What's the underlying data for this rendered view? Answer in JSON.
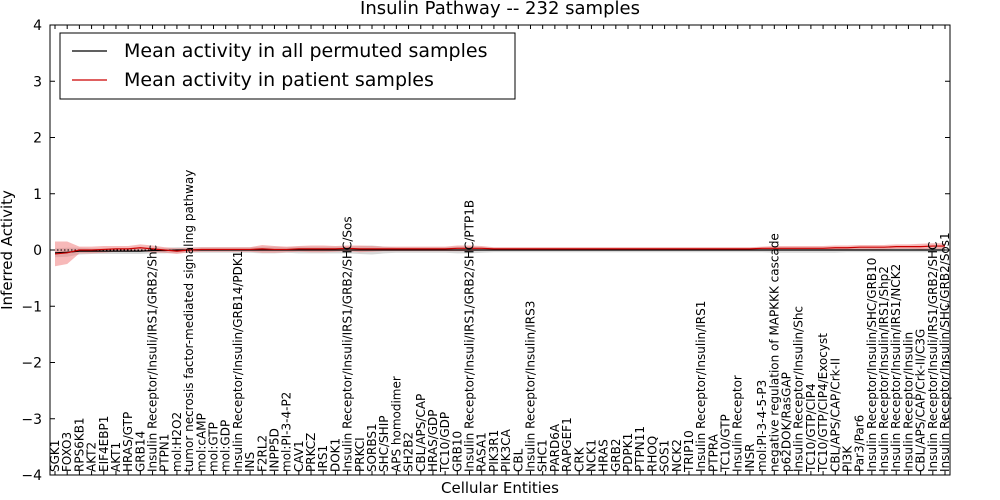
{
  "chart_data": {
    "type": "line",
    "title": "Insulin Pathway -- 232 samples",
    "xlabel": "Cellular Entities",
    "ylabel": "Inferred Activity",
    "ylim": [
      -4,
      4
    ],
    "yticks": [
      -4,
      -3,
      -2,
      -1,
      0,
      1,
      2,
      3,
      4
    ],
    "ytick_labels": [
      "−4",
      "−3",
      "−2",
      "−1",
      "0",
      "1",
      "2",
      "3",
      "4"
    ],
    "legend_position": "top-left",
    "reference_line": 0,
    "categories": [
      "SGK1",
      "FOXO3",
      "RPS6KB1",
      "AKT2",
      "EIF4EBP1",
      "AKT1",
      "HRAS/GTP",
      "GRB14",
      "Insulin Receptor/Insuli/IRS1/GRB2/Shc",
      "PTPN1",
      "mol:H2O2",
      "tumor necrosis factor-mediated signaling pathway",
      "mol:cAMP",
      "mol:GTP",
      "mol:GDP",
      "Insulin Receptor/Insulin/GRB14/PDK1",
      "INS",
      "F2RL2",
      "INPP5D",
      "mol:PI-3-4-P2",
      "CAV1",
      "PRKCZ",
      "IRS1",
      "DOK1",
      "Insulin Receptor/Insuli/IRS1/GRB2/SHC/Sos",
      "PRKCI",
      "SORBS1",
      "SHC/SHIP",
      "APS homodimer",
      "SH2B2",
      "CBL/APS/CAP",
      "HRAS/GDP",
      "TC10/GDP",
      "GRB10",
      "Insulin Receptor/Insuli/IRS1/GRB2/SHC/PTP1B",
      "RASA1",
      "PIK3R1",
      "PIK3CA",
      "CBL",
      "Insulin Receptor/Insulin/IRS3",
      "SHC1",
      "PARD6A",
      "RAPGEF1",
      "CRK",
      "NCK1",
      "HRAS",
      "GRB2",
      "PDPK1",
      "PTPN11",
      "RHOQ",
      "SOS1",
      "NCK2",
      "TRIP10",
      "Insulin Receptor/Insulin/IRS1",
      "PTPRA",
      "TC10/GTP",
      "Insulin Receptor",
      "INSR",
      "mol:PI-3-4-5-P3",
      "negative regulation of MAPKKK cascade",
      "p62DOK/RasGAP",
      "Insulin Receptor/Insulin/Shc",
      "TC10/GTP/CIP4",
      "TC10/GTP/CIP4/Exocyst",
      "CBL/APS/CAP/Crk-II",
      "PI3K",
      "Par3/Par6",
      "Insulin Receptor/Insulin/SHC/GRB10",
      "Insulin Receptor/Insulin/IRS1/Shp2",
      "Insulin Receptor/Insulin/IRS1/NCK2",
      "Insulin Receptor/Insulin",
      "CBL/APS/CAP/Crk-II/C3G",
      "Insulin Receptor/Insuli/IRS1/GRB2/SHC",
      "Insulin Receptor/Insulin/SHC/GRB2/Sos1"
    ],
    "series": [
      {
        "name": "Mean activity in all permuted samples",
        "color": "#000000",
        "band_color": "#bdbdbd",
        "values": [
          -0.05,
          -0.04,
          -0.02,
          -0.02,
          -0.02,
          -0.02,
          -0.02,
          -0.02,
          -0.01,
          -0.01,
          0.0,
          0.0,
          0.0,
          0.0,
          0.0,
          0.0,
          0.0,
          0.0,
          0.0,
          0.0,
          0.0,
          0.0,
          0.0,
          0.0,
          0.0,
          0.0,
          0.0,
          0.0,
          0.0,
          0.0,
          0.0,
          0.0,
          0.0,
          0.0,
          0.0,
          0.0,
          0.0,
          0.0,
          0.0,
          0.0,
          0.0,
          0.0,
          0.0,
          0.0,
          0.0,
          0.0,
          0.0,
          0.0,
          0.0,
          0.0,
          0.0,
          0.0,
          0.0,
          0.0,
          0.0,
          0.0,
          0.0,
          0.0,
          0.0,
          0.0,
          0.0,
          0.0,
          0.0,
          0.0,
          0.0,
          0.0,
          0.0,
          0.0,
          0.0,
          0.0,
          0.0,
          0.0,
          0.0,
          0.0
        ],
        "band": [
          0.08,
          0.08,
          0.06,
          0.05,
          0.05,
          0.05,
          0.05,
          0.05,
          0.05,
          0.05,
          0.05,
          0.05,
          0.05,
          0.05,
          0.05,
          0.05,
          0.05,
          0.06,
          0.06,
          0.05,
          0.06,
          0.06,
          0.06,
          0.06,
          0.06,
          0.07,
          0.08,
          0.06,
          0.05,
          0.05,
          0.05,
          0.05,
          0.05,
          0.06,
          0.06,
          0.05,
          0.04,
          0.04,
          0.04,
          0.04,
          0.04,
          0.04,
          0.04,
          0.04,
          0.04,
          0.04,
          0.04,
          0.04,
          0.04,
          0.04,
          0.04,
          0.04,
          0.04,
          0.04,
          0.04,
          0.04,
          0.04,
          0.04,
          0.04,
          0.05,
          0.05,
          0.05,
          0.05,
          0.05,
          0.05,
          0.04,
          0.04,
          0.04,
          0.04,
          0.04,
          0.04,
          0.04,
          0.04,
          0.04
        ]
      },
      {
        "name": "Mean activity in patient samples",
        "color": "#cc0000",
        "band_color": "#f08080",
        "values": [
          -0.07,
          -0.05,
          0.0,
          0.0,
          0.01,
          0.02,
          0.02,
          0.04,
          0.02,
          0.0,
          -0.02,
          0.0,
          0.01,
          0.01,
          0.01,
          0.01,
          0.01,
          0.02,
          0.01,
          0.01,
          0.02,
          0.02,
          0.02,
          0.02,
          0.03,
          0.02,
          0.02,
          0.02,
          0.02,
          0.02,
          0.02,
          0.02,
          0.02,
          0.03,
          0.03,
          0.03,
          0.02,
          0.02,
          0.02,
          0.02,
          0.02,
          0.02,
          0.02,
          0.02,
          0.02,
          0.02,
          0.02,
          0.02,
          0.02,
          0.02,
          0.02,
          0.02,
          0.02,
          0.02,
          0.02,
          0.02,
          0.02,
          0.02,
          0.03,
          0.03,
          0.03,
          0.03,
          0.03,
          0.03,
          0.04,
          0.04,
          0.05,
          0.05,
          0.05,
          0.06,
          0.06,
          0.06,
          0.07,
          0.07
        ],
        "band": [
          0.22,
          0.2,
          0.06,
          0.06,
          0.06,
          0.05,
          0.05,
          0.06,
          0.06,
          0.05,
          0.05,
          0.04,
          0.04,
          0.04,
          0.04,
          0.04,
          0.04,
          0.07,
          0.06,
          0.05,
          0.05,
          0.06,
          0.06,
          0.05,
          0.05,
          0.06,
          0.05,
          0.04,
          0.04,
          0.04,
          0.04,
          0.04,
          0.04,
          0.05,
          0.05,
          0.04,
          0.03,
          0.03,
          0.03,
          0.03,
          0.03,
          0.03,
          0.03,
          0.03,
          0.03,
          0.03,
          0.03,
          0.03,
          0.03,
          0.03,
          0.03,
          0.03,
          0.03,
          0.03,
          0.03,
          0.03,
          0.03,
          0.03,
          0.03,
          0.04,
          0.04,
          0.04,
          0.04,
          0.04,
          0.04,
          0.04,
          0.04,
          0.04,
          0.04,
          0.04,
          0.04,
          0.05,
          0.05,
          0.05
        ]
      }
    ]
  }
}
